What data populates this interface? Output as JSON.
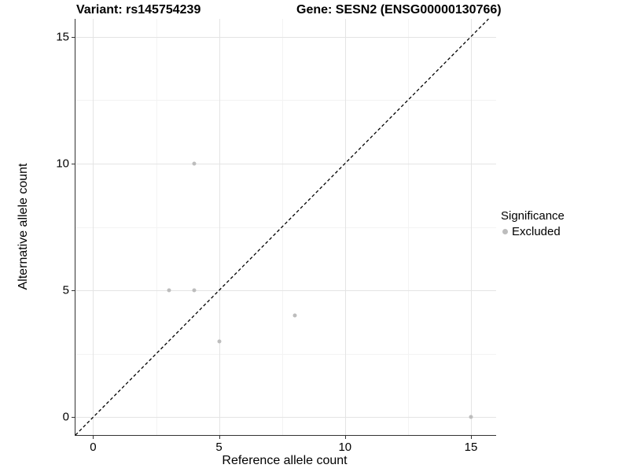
{
  "figure": {
    "title_left": "Variant: rs145754239",
    "title_right": "Gene: SESN2 (ENSG00000130766)"
  },
  "chart_data": {
    "type": "scatter",
    "title": "Variant: rs145754239   Gene: SESN2 (ENSG00000130766)",
    "xlabel": "Reference allele count",
    "ylabel": "Alternative allele count",
    "xlim": [
      -0.7,
      16.0
    ],
    "ylim": [
      -0.7,
      15.7
    ],
    "x_ticks": [
      0,
      5,
      10,
      15
    ],
    "y_ticks": [
      0,
      5,
      10,
      15
    ],
    "x_minor_ticks": [
      2.5,
      7.5,
      12.5
    ],
    "y_minor_ticks": [
      2.5,
      7.5,
      12.5
    ],
    "grid": true,
    "series": [
      {
        "name": "Excluded",
        "color": "#bdbdbd",
        "points": [
          [
            3,
            5
          ],
          [
            4,
            5
          ],
          [
            4,
            10
          ],
          [
            5,
            3
          ],
          [
            8,
            4
          ],
          [
            15,
            0
          ]
        ]
      }
    ],
    "reference_line": {
      "kind": "identity",
      "style": "dashed",
      "color": "#000000",
      "from": [
        -0.7,
        -0.7
      ],
      "to": [
        15.7,
        15.7
      ]
    },
    "legend": {
      "title": "Significance",
      "position": "right",
      "items": [
        {
          "label": "Excluded",
          "color": "#bdbdbd"
        }
      ]
    }
  },
  "colors": {
    "background": "#ffffff",
    "axis_line": "#333333",
    "grid_major": "#e4e4e4",
    "grid_minor": "#f3f3f3",
    "point": "#bdbdbd"
  }
}
